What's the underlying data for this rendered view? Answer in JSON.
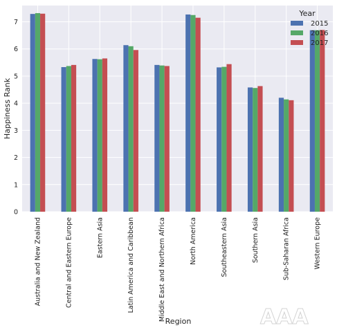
{
  "chart_data": {
    "type": "bar",
    "xlabel": "Region",
    "ylabel": "Happiness Rank",
    "ylim": [
      0,
      7.6
    ],
    "yticks": [
      0,
      1,
      2,
      3,
      4,
      5,
      6,
      7
    ],
    "grid": true,
    "legend": {
      "title": "Year",
      "position": "top-right"
    },
    "categories": [
      "Australia and New Zealand",
      "Central and Eastern Europe",
      "Eastern Asia",
      "Latin America and Caribbean",
      "Middle East and Northern Africa",
      "North America",
      "Southeastern Asia",
      "Southern Asia",
      "Sub-Saharan Africa",
      "Western Europe"
    ],
    "series": [
      {
        "name": "2015",
        "color": "#4c72b0",
        "values": [
          7.29,
          5.33,
          5.63,
          6.14,
          5.41,
          7.27,
          5.32,
          4.58,
          4.2,
          6.69
        ]
      },
      {
        "name": "2016",
        "color": "#55a868",
        "values": [
          7.32,
          5.37,
          5.62,
          6.1,
          5.39,
          7.25,
          5.34,
          4.56,
          4.14,
          6.69
        ]
      },
      {
        "name": "2017",
        "color": "#c44e52",
        "values": [
          7.3,
          5.41,
          5.65,
          5.96,
          5.37,
          7.15,
          5.44,
          4.63,
          4.11,
          6.7
        ]
      }
    ]
  },
  "watermark": {
    "text": "AAA",
    "color": "#ffffff"
  }
}
